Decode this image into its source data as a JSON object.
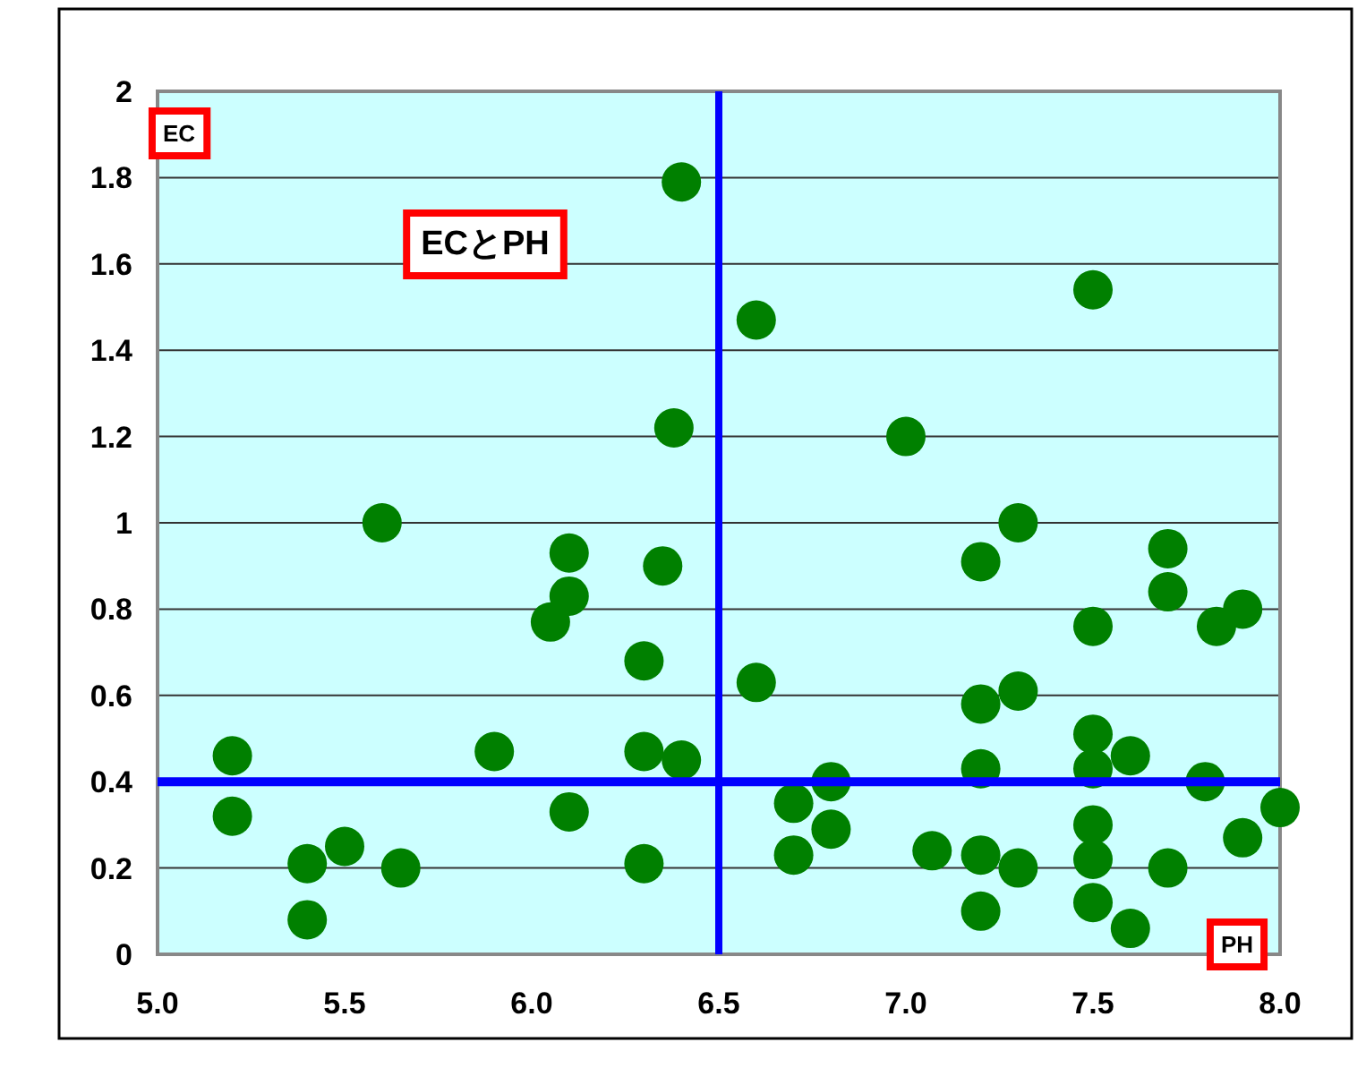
{
  "chart_data": {
    "type": "scatter",
    "title": "ECとPH",
    "xlabel": "PH",
    "ylabel": "EC",
    "xlim": [
      5,
      8
    ],
    "xticks": [
      {
        "value": 5,
        "label": "5.0"
      },
      {
        "value": 5.5,
        "label": "5.5"
      },
      {
        "value": 6,
        "label": "6.0"
      },
      {
        "value": 6.5,
        "label": "6.5"
      },
      {
        "value": 7,
        "label": "7.0"
      },
      {
        "value": 7.5,
        "label": "7.5"
      },
      {
        "value": 8,
        "label": "8.0"
      }
    ],
    "ylim": [
      0,
      2
    ],
    "yticks": [
      0,
      0.2,
      0.4,
      0.6,
      0.8,
      1,
      1.2,
      1.4,
      1.6,
      1.8,
      2
    ],
    "grid": "y",
    "marker": "circle",
    "ref_lines": [
      {
        "axis": "x",
        "value": 6.5,
        "color": "#0000ff"
      },
      {
        "axis": "y",
        "value": 0.4,
        "color": "#0000ff"
      }
    ],
    "series": [
      {
        "color": "#008000",
        "x": [
          5.2,
          5.2,
          5.4,
          5.4,
          5.5,
          5.6,
          5.65,
          5.9,
          6.05,
          6.1,
          6.1,
          6.1,
          6.3,
          6.3,
          6.3,
          6.35,
          6.38,
          6.4,
          6.4,
          6.6,
          6.6,
          6.7,
          6.7,
          6.8,
          6.8,
          7.0,
          7.07,
          7.2,
          7.2,
          7.2,
          7.2,
          7.2,
          7.3,
          7.3,
          7.3,
          7.5,
          7.5,
          7.5,
          7.5,
          7.5,
          7.5,
          7.5,
          7.6,
          7.6,
          7.7,
          7.7,
          7.7,
          7.8,
          7.83,
          7.9,
          7.9,
          8.0
        ],
        "values": [
          0.46,
          0.32,
          0.21,
          0.08,
          0.25,
          1.0,
          0.2,
          0.47,
          0.77,
          0.93,
          0.83,
          0.33,
          0.68,
          0.47,
          0.21,
          0.9,
          1.22,
          1.79,
          0.45,
          1.47,
          0.63,
          0.35,
          0.23,
          0.4,
          0.29,
          1.2,
          0.24,
          0.91,
          0.58,
          0.43,
          0.23,
          0.1,
          0.61,
          1.0,
          0.2,
          1.54,
          0.76,
          0.51,
          0.43,
          0.3,
          0.22,
          0.12,
          0.46,
          0.06,
          0.94,
          0.84,
          0.2,
          0.4,
          0.76,
          0.8,
          0.27,
          0.34
        ]
      }
    ]
  }
}
